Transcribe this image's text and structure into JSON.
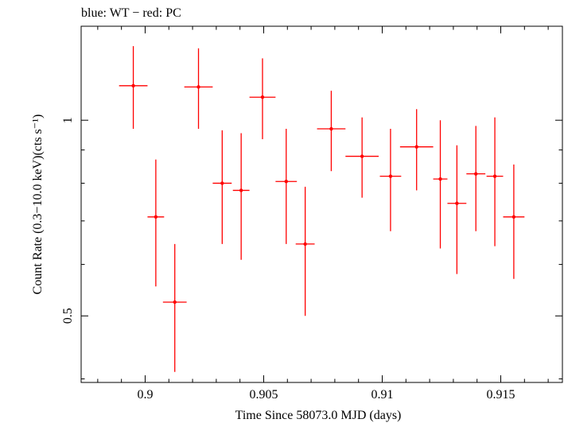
{
  "chart_data": {
    "type": "scatter",
    "title": "blue: WT − red: PC",
    "xlabel": "Time Since 58073.0 MJD (days)",
    "ylabel": "Count Rate (0.3−10.0 keV)(cts s⁻¹)",
    "xlim": [
      0.8973,
      0.9176
    ],
    "ylim": [
      0.395,
      1.395
    ],
    "yscale": "log",
    "grid": false,
    "x_ticks": [
      0.9,
      0.905,
      0.91,
      0.915
    ],
    "x_tick_labels": [
      "0.9",
      "0.905",
      "0.91",
      "0.915"
    ],
    "y_ticks": [
      0.5,
      1
    ],
    "y_tick_labels": [
      "0.5",
      "1"
    ],
    "series": [
      {
        "color": "#ff0000",
        "points": [
          {
            "x": 0.8995,
            "xerr": 0.0006,
            "y": 1.13,
            "ylo": 0.97,
            "yhi": 1.3
          },
          {
            "x": 0.90045,
            "xerr": 0.00035,
            "y": 0.71,
            "ylo": 0.555,
            "yhi": 0.87
          },
          {
            "x": 0.90125,
            "xerr": 0.0005,
            "y": 0.525,
            "ylo": 0.41,
            "yhi": 0.645
          },
          {
            "x": 0.90225,
            "xerr": 0.0006,
            "y": 1.125,
            "ylo": 0.97,
            "yhi": 1.29
          },
          {
            "x": 0.90325,
            "xerr": 0.0004,
            "y": 0.8,
            "ylo": 0.645,
            "yhi": 0.965
          },
          {
            "x": 0.90405,
            "xerr": 0.00035,
            "y": 0.78,
            "ylo": 0.61,
            "yhi": 0.955
          },
          {
            "x": 0.90495,
            "xerr": 0.00055,
            "y": 1.085,
            "ylo": 0.935,
            "yhi": 1.245
          },
          {
            "x": 0.90595,
            "xerr": 0.00045,
            "y": 0.805,
            "ylo": 0.645,
            "yhi": 0.97
          },
          {
            "x": 0.90675,
            "xerr": 0.0004,
            "y": 0.645,
            "ylo": 0.5,
            "yhi": 0.79
          },
          {
            "x": 0.90785,
            "xerr": 0.0006,
            "y": 0.97,
            "ylo": 0.835,
            "yhi": 1.11
          },
          {
            "x": 0.90915,
            "xerr": 0.0007,
            "y": 0.88,
            "ylo": 0.76,
            "yhi": 1.01
          },
          {
            "x": 0.91035,
            "xerr": 0.00045,
            "y": 0.82,
            "ylo": 0.675,
            "yhi": 0.97
          },
          {
            "x": 0.91145,
            "xerr": 0.0007,
            "y": 0.91,
            "ylo": 0.78,
            "yhi": 1.04
          },
          {
            "x": 0.91245,
            "xerr": 0.0003,
            "y": 0.812,
            "ylo": 0.635,
            "yhi": 1.0
          },
          {
            "x": 0.91315,
            "xerr": 0.0004,
            "y": 0.745,
            "ylo": 0.58,
            "yhi": 0.915
          },
          {
            "x": 0.91395,
            "xerr": 0.0004,
            "y": 0.827,
            "ylo": 0.675,
            "yhi": 0.98
          },
          {
            "x": 0.91475,
            "xerr": 0.00035,
            "y": 0.82,
            "ylo": 0.64,
            "yhi": 1.01
          },
          {
            "x": 0.91555,
            "xerr": 0.00045,
            "y": 0.71,
            "ylo": 0.57,
            "yhi": 0.855
          }
        ]
      }
    ]
  }
}
